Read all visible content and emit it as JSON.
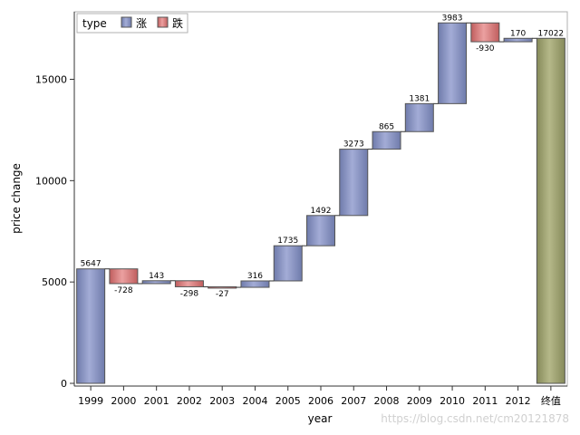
{
  "chart_data": {
    "type": "bar",
    "subtype": "waterfall",
    "xlabel": "year",
    "ylabel": "price change",
    "ylim": [
      0,
      18000
    ],
    "yticks": [
      0,
      5000,
      10000,
      15000
    ],
    "categories": [
      "1999",
      "2000",
      "2001",
      "2002",
      "2003",
      "2004",
      "2005",
      "2006",
      "2007",
      "2008",
      "2009",
      "2010",
      "2011",
      "2012",
      "终值"
    ],
    "values": [
      5647,
      -728,
      143,
      -298,
      -27,
      316,
      1735,
      1492,
      3273,
      865,
      1381,
      3983,
      -930,
      170,
      17022
    ],
    "value_labels": [
      "5647",
      "-728",
      "143",
      "-298",
      "-27",
      "316",
      "1735",
      "1492",
      "3273",
      "865",
      "1381",
      "3983",
      "-930",
      "170",
      "17022"
    ],
    "bar_kinds": [
      "up",
      "down",
      "up",
      "down",
      "down",
      "up",
      "up",
      "up",
      "up",
      "up",
      "up",
      "up",
      "down",
      "up",
      "total"
    ],
    "legend": {
      "title": "type",
      "position": "top-left",
      "entries": [
        {
          "label": "涨",
          "kind": "up"
        },
        {
          "label": "跌",
          "kind": "down"
        }
      ]
    },
    "colors": {
      "up": "#8a96c4",
      "down": "#d98080",
      "total": "#a2a474",
      "outline": "#555555"
    }
  },
  "watermark": "https://blog.csdn.net/cm20121878"
}
